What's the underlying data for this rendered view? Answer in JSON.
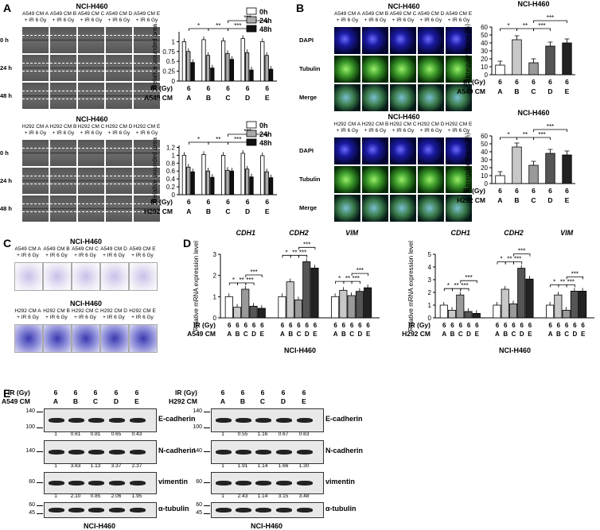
{
  "panels": {
    "A": {
      "label": "A",
      "top": {
        "title": "NCI-H460",
        "columns": [
          "A549 CM A + IR 6 Gy",
          "A549 CM B + IR 6 Gy",
          "A549 CM C + IR 6 Gy",
          "A549 CM D + IR 6 Gy",
          "A549 CM E + IR 6 Gy"
        ],
        "rows": [
          "0 h",
          "24 h",
          "48 h"
        ]
      },
      "bottom": {
        "title": "NCI-H460",
        "columns": [
          "H292 CM A + IR 6 Gy",
          "H292 CM B + IR 6 Gy",
          "H292 CM C + IR 6 Gy",
          "H292 CM D + IR 6 Gy",
          "H292 CM E + IR 6 Gy"
        ],
        "rows": [
          "0 h",
          "24 h",
          "48 h"
        ]
      }
    },
    "B": {
      "label": "B",
      "top": {
        "title": "NCI-H460",
        "columns": [
          "A549 CM A + IR 6 Gy",
          "A549 CM B + IR 6 Gy",
          "A549 CM C + IR 6 Gy",
          "A549 CM D + IR 6 Gy",
          "A549 CM E + IR 6 Gy"
        ],
        "rows": [
          "DAPI",
          "Tubulin",
          "Merge"
        ]
      },
      "bottom": {
        "title": "NCI-H460",
        "columns": [
          "H292 CM A + IR 6 Gy",
          "H292 CM B + IR 6 Gy",
          "H292 CM C + IR 6 Gy",
          "H292 CM D + IR 6 Gy",
          "H292 CM E + IR 6 Gy"
        ],
        "rows": [
          "DAPI",
          "Tubulin",
          "Merge"
        ]
      }
    },
    "C": {
      "label": "C",
      "top": {
        "title": "NCI-H460",
        "columns": [
          "A549 CM A + IR 6 Gy",
          "A549 CM B + IR 6 Gy",
          "A549 CM C + IR 6 Gy",
          "A549 CM D + IR 6 Gy",
          "A549 CM E + IR 6 Gy"
        ]
      },
      "bottom": {
        "title": "NCI-H460",
        "columns": [
          "H292 CM A + IR 6 Gy",
          "H292 CM B + IR 6 Gy",
          "H292 CM C + IR 6 Gy",
          "H292 CM D + IR 6 Gy",
          "H292 CM E + IR 6 Gy"
        ]
      }
    },
    "D": {
      "label": "D"
    },
    "E": {
      "label": "E",
      "left": {
        "ir_label": "IR (Gy)",
        "cm_label": "A549 CM",
        "ir_values": [
          "6",
          "6",
          "6",
          "6",
          "6"
        ],
        "cm_values": [
          "A",
          "B",
          "C",
          "D",
          "E"
        ],
        "caption": "NCI-H460",
        "blots": [
          {
            "name": "E-cadherin",
            "markers": [
              "140",
              "100"
            ],
            "values": [
              "1",
              "0.61",
              "0.81",
              "0.65",
              "0.43"
            ]
          },
          {
            "name": "N-cadherin",
            "markers": [
              "140"
            ],
            "values": [
              "1",
              "3.63",
              "1.13",
              "3.37",
              "2.37"
            ]
          },
          {
            "name": "vimentin",
            "markers": [
              "60"
            ],
            "values": [
              "1",
              "2.10",
              "0.85",
              "2.06",
              "1.95"
            ]
          },
          {
            "name": "α-tubulin",
            "markers": [
              "60",
              "45"
            ],
            "values": []
          }
        ]
      },
      "right": {
        "ir_label": "IR (Gy)",
        "cm_label": "H292 CM",
        "ir_values": [
          "6",
          "6",
          "6",
          "6",
          "6"
        ],
        "cm_values": [
          "A",
          "B",
          "C",
          "D",
          "E"
        ],
        "caption": "NCI-H460",
        "blots": [
          {
            "name": "E-cadherin",
            "markers": [
              "140",
              "100"
            ],
            "values": [
              "1",
              "0.55",
              "1.16",
              "0.67",
              "0.63"
            ]
          },
          {
            "name": "N-cadherin",
            "markers": [
              "140"
            ],
            "values": [
              "1",
              "1.91",
              "1.14",
              "1.66",
              "1.30"
            ]
          },
          {
            "name": "vimentin",
            "markers": [
              "60"
            ],
            "values": [
              "1",
              "2.43",
              "1.14",
              "3.15",
              "3.48"
            ]
          },
          {
            "name": "α-tubulin",
            "markers": [
              "60",
              "45"
            ],
            "values": []
          }
        ]
      }
    }
  },
  "colors": {
    "bar_0h": "#ffffff",
    "bar_24h": "#aaaaaa",
    "bar_48h": "#111111",
    "cmA": "#ffffff",
    "cmB": "#c8c8c8",
    "cmC": "#9a9a9a",
    "cmD": "#555555",
    "cmE": "#222222"
  },
  "chart_data": [
    {
      "id": "A-top",
      "type": "bar",
      "title": "",
      "ylabel": "Relative wounded area",
      "ylim": [
        0,
        1.25
      ],
      "yticks": [
        "0",
        "0.25",
        "0.5",
        "0.75",
        "1"
      ],
      "categories": [
        "A",
        "B",
        "C",
        "D",
        "E"
      ],
      "x_rows": [
        {
          "label": "IR (Gy)",
          "values": [
            "6",
            "6",
            "6",
            "6",
            "6"
          ]
        },
        {
          "label": "A549 CM",
          "values": [
            "A",
            "B",
            "C",
            "D",
            "E"
          ]
        }
      ],
      "series": [
        {
          "name": "0h",
          "values": [
            1.0,
            1.05,
            1.02,
            1.08,
            1.0
          ]
        },
        {
          "name": "24h",
          "values": [
            0.75,
            0.65,
            0.7,
            0.72,
            0.65
          ]
        },
        {
          "name": "48h",
          "values": [
            0.47,
            0.33,
            0.55,
            0.28,
            0.3
          ]
        }
      ],
      "sig": [
        "*",
        "**",
        "***",
        "***"
      ]
    },
    {
      "id": "A-bottom",
      "type": "bar",
      "title": "",
      "ylabel": "Relative wounded area",
      "ylim": [
        0,
        1.25
      ],
      "yticks": [
        "0",
        "0.2",
        "0.4",
        "0.6",
        "0.8",
        "1",
        "1.2"
      ],
      "categories": [
        "A",
        "B",
        "C",
        "D",
        "E"
      ],
      "x_rows": [
        {
          "label": "IR (Gy)",
          "values": [
            "6",
            "6",
            "6",
            "6",
            "6"
          ]
        },
        {
          "label": "H292 CM",
          "values": [
            "A",
            "B",
            "C",
            "D",
            "E"
          ]
        }
      ],
      "series": [
        {
          "name": "0h",
          "values": [
            1.0,
            1.02,
            1.0,
            1.05,
            0.99
          ]
        },
        {
          "name": "24h",
          "values": [
            0.7,
            0.6,
            0.62,
            0.65,
            0.58
          ]
        },
        {
          "name": "48h",
          "values": [
            0.58,
            0.44,
            0.6,
            0.45,
            0.43
          ]
        }
      ],
      "sig": [
        "*",
        "**",
        "***",
        "***"
      ]
    },
    {
      "id": "B-top",
      "type": "bar",
      "title": "NCI-H460",
      "ylabel": "Irregular shape (%)",
      "ylim": [
        0,
        60
      ],
      "yticks": [
        "0",
        "10",
        "20",
        "30",
        "40",
        "50",
        "60"
      ],
      "categories": [
        "A",
        "B",
        "C",
        "D",
        "E"
      ],
      "x_rows": [
        {
          "label": "IR (Gy)",
          "values": [
            "6",
            "6",
            "6",
            "6",
            "6"
          ]
        },
        {
          "label": "A549 CM",
          "values": [
            "A",
            "B",
            "C",
            "D",
            "E"
          ]
        }
      ],
      "series": [
        {
          "name": "",
          "values": [
            12,
            44,
            15,
            36,
            40
          ]
        }
      ],
      "sig": [
        "*",
        "**",
        "***",
        "***"
      ]
    },
    {
      "id": "B-bottom",
      "type": "bar",
      "title": "NCI-H460",
      "ylabel": "Irregular shape (%)",
      "ylim": [
        0,
        60
      ],
      "yticks": [
        "0",
        "10",
        "20",
        "30",
        "40",
        "50",
        "60"
      ],
      "categories": [
        "A",
        "B",
        "C",
        "D",
        "E"
      ],
      "x_rows": [
        {
          "label": "IR (Gy)",
          "values": [
            "6",
            "6",
            "6",
            "6",
            "6"
          ]
        },
        {
          "label": "H292 CM",
          "values": [
            "A",
            "B",
            "C",
            "D",
            "E"
          ]
        }
      ],
      "series": [
        {
          "name": "",
          "values": [
            10,
            46,
            23,
            38,
            36
          ]
        }
      ],
      "sig": [
        "*",
        "**",
        "***",
        "***"
      ]
    },
    {
      "id": "D-left",
      "type": "bar",
      "title": "",
      "ylabel": "Relative mRNA expression level",
      "ylim": [
        0,
        3
      ],
      "yticks": [
        "0",
        "1",
        "2",
        "3"
      ],
      "groups": [
        "CDH1",
        "CDH2",
        "VIM"
      ],
      "categories": [
        "A",
        "B",
        "C",
        "D",
        "E"
      ],
      "x_rows": [
        {
          "label": "IR (Gy)",
          "values": [
            "6",
            "6",
            "6",
            "6",
            "6"
          ]
        },
        {
          "label": "A549 CM",
          "values": [
            "A",
            "B",
            "C",
            "D",
            "E"
          ]
        }
      ],
      "caption": "NCI-H460",
      "values": [
        [
          1.0,
          0.5,
          1.35,
          0.55,
          0.45
        ],
        [
          1.0,
          1.7,
          0.85,
          2.65,
          2.35
        ],
        [
          1.0,
          1.3,
          1.05,
          1.25,
          1.42
        ]
      ],
      "sig": [
        "*",
        "**",
        "***",
        "***"
      ]
    },
    {
      "id": "D-right",
      "type": "bar",
      "title": "",
      "ylabel": "Relative mRNA expression level",
      "ylim": [
        0,
        5
      ],
      "yticks": [
        "0",
        "1",
        "2",
        "3",
        "4",
        "5"
      ],
      "groups": [
        "CDH1",
        "CDH2",
        "VIM"
      ],
      "categories": [
        "A",
        "B",
        "C",
        "D",
        "E"
      ],
      "x_rows": [
        {
          "label": "IR (Gy)",
          "values": [
            "6",
            "6",
            "6",
            "6",
            "6"
          ]
        },
        {
          "label": "H292 CM",
          "values": [
            "A",
            "B",
            "C",
            "D",
            "E"
          ]
        }
      ],
      "caption": "NCI-H460",
      "values": [
        [
          1.0,
          0.6,
          1.8,
          0.5,
          0.35
        ],
        [
          1.0,
          2.25,
          1.1,
          3.9,
          3.05
        ],
        [
          1.0,
          1.8,
          0.6,
          2.1,
          2.1
        ]
      ],
      "sig": [
        "*",
        "**",
        "***",
        "***"
      ]
    }
  ]
}
